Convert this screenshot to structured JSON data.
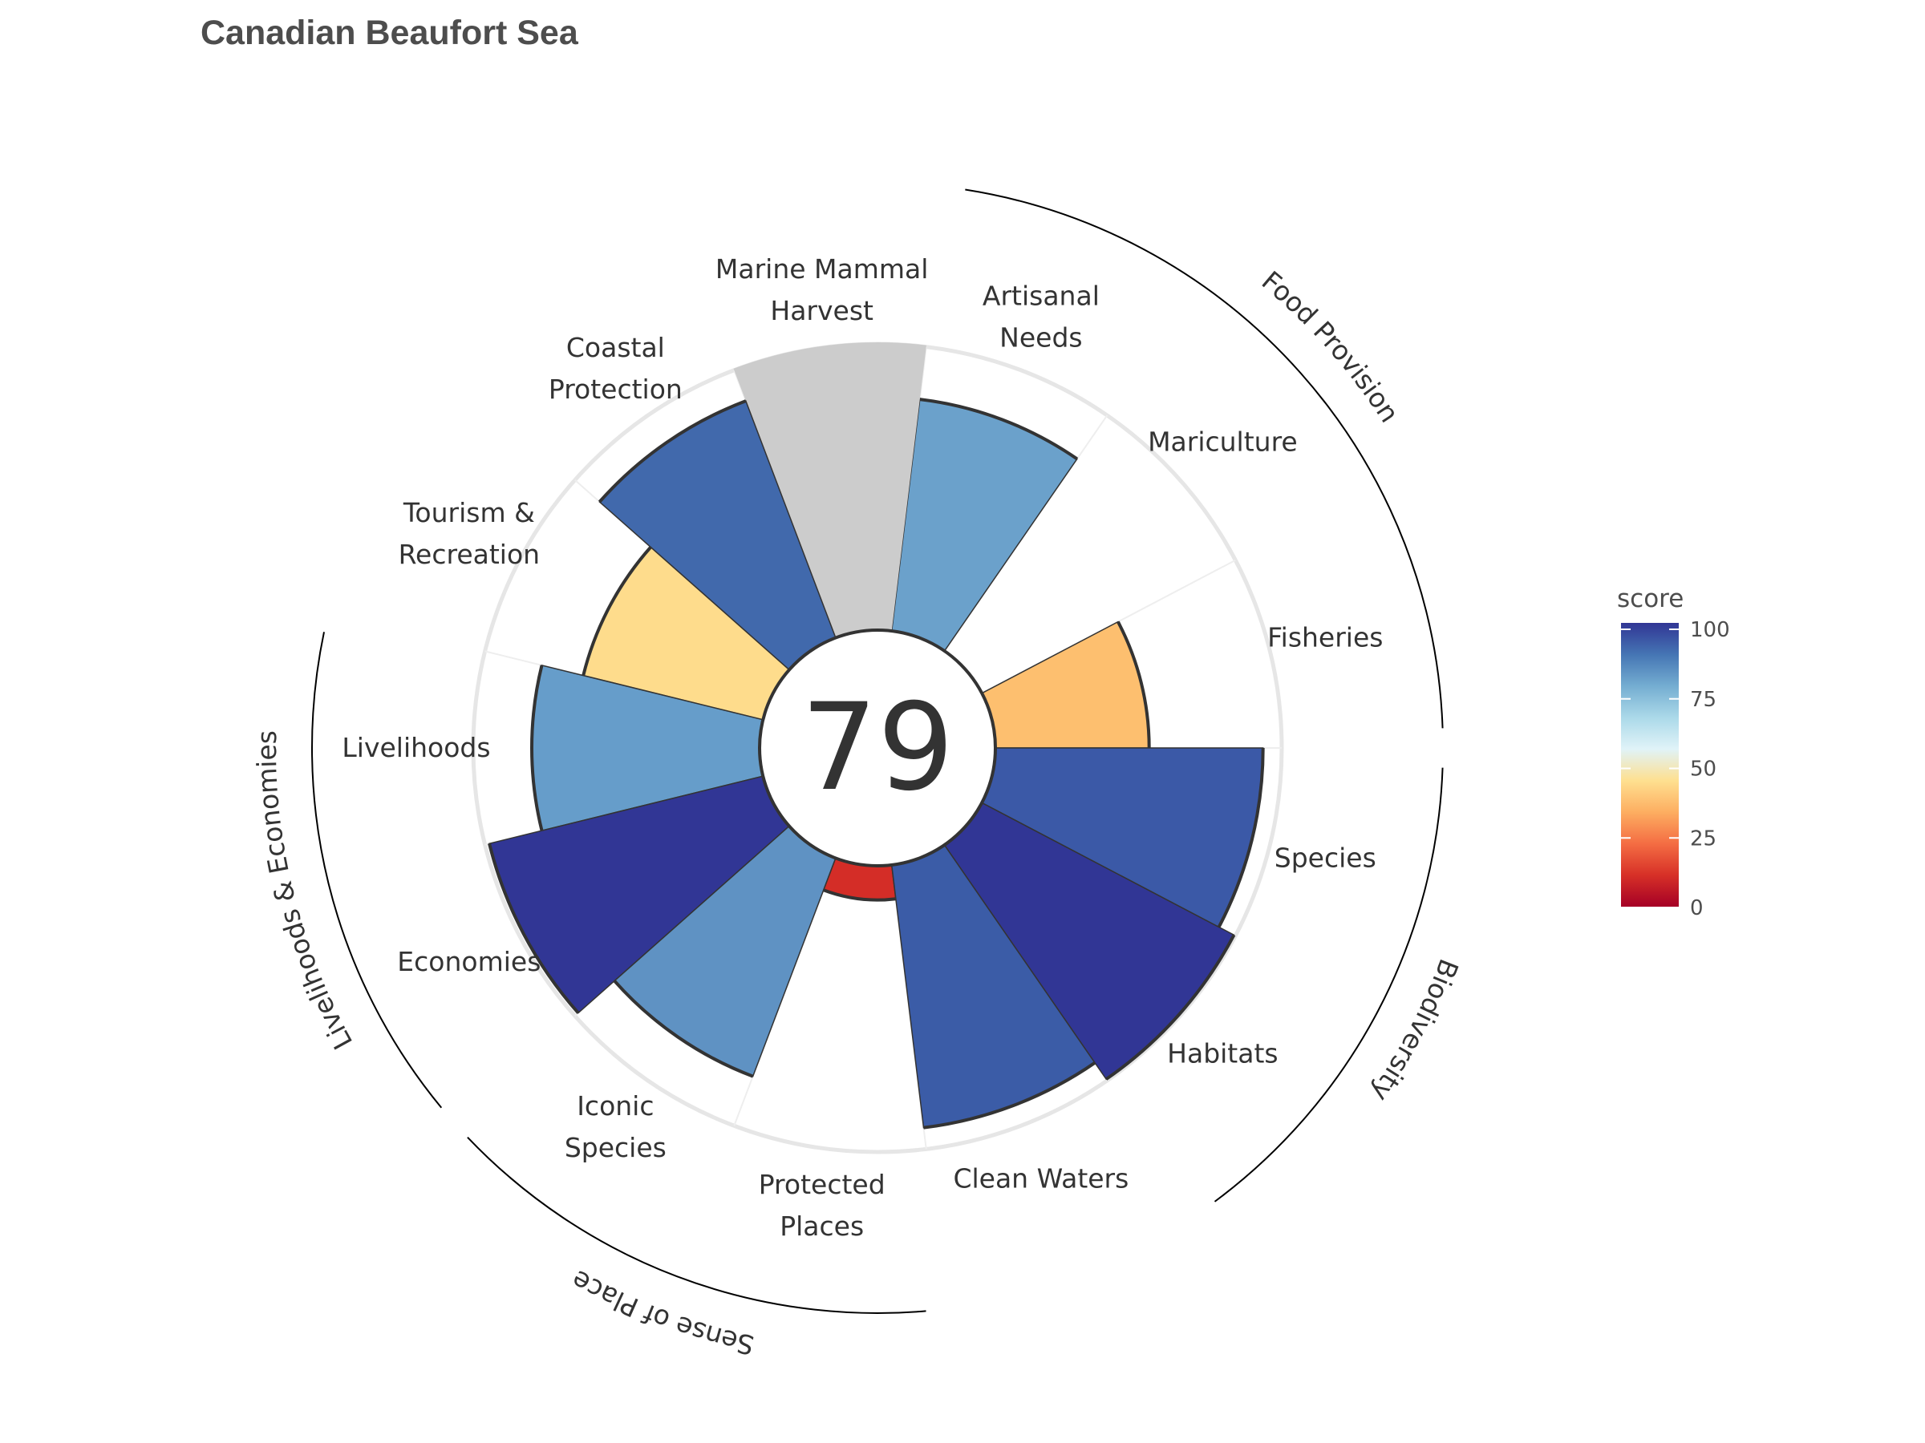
{
  "chart_data": {
    "type": "polar-bar",
    "title": "Canadian Beaufort Sea",
    "overall_score": "79",
    "scale_max": 100,
    "goals": [
      {
        "label": [
          "Fisheries"
        ],
        "score": 54,
        "color": "#FDBF6F"
      },
      {
        "label": [
          "Mariculture"
        ],
        "score": null,
        "color": null
      },
      {
        "label": [
          "Artisanal",
          "Needs"
        ],
        "score": 82,
        "color": "#6BA1CB"
      },
      {
        "label": [
          "Marine Mammal",
          "Harvest"
        ],
        "score": null,
        "color": "#CCCCCC",
        "placeholder": true
      },
      {
        "label": [
          "Coastal",
          "Protection"
        ],
        "score": 89,
        "color": "#4169AC"
      },
      {
        "label": [
          "Tourism &",
          "Recreation"
        ],
        "score": 65,
        "color": "#FEDC8C"
      },
      {
        "label": [
          "Livelihoods"
        ],
        "score": 80,
        "color": "#669DCA"
      },
      {
        "label": [
          "Economies"
        ],
        "score": 99,
        "color": "#313695"
      },
      {
        "label": [
          "Iconic",
          "Species"
        ],
        "score": 82,
        "color": "#5F92C3"
      },
      {
        "label": [
          "Protected",
          "Places"
        ],
        "score": 12,
        "color": "#D42D27"
      },
      {
        "label": [
          "Clean Waters"
        ],
        "score": 93,
        "color": "#3B5CA7"
      },
      {
        "label": [
          "Habitats"
        ],
        "score": 100,
        "color": "#313695"
      },
      {
        "label": [
          "Species"
        ],
        "score": 94,
        "color": "#3B59A7"
      }
    ],
    "groups": [
      {
        "label": "Food Provision",
        "from": 0,
        "to": 2
      },
      {
        "label": "Biodiversity",
        "from": 11,
        "to": 12
      },
      {
        "label": "Sense of Place",
        "from": 8,
        "to": 9
      },
      {
        "label": "Livelihoods & Economies",
        "from": 6,
        "to": 7
      }
    ],
    "legend": {
      "title": "score",
      "ticks": [
        "0",
        "25",
        "50",
        "75",
        "100"
      ],
      "gradient": [
        "#A50026",
        "#D73027",
        "#F46D43",
        "#FDAE61",
        "#FEE090",
        "#E0F3F8",
        "#ABD9E9",
        "#74ADD1",
        "#4575B4",
        "#313695"
      ]
    }
  }
}
